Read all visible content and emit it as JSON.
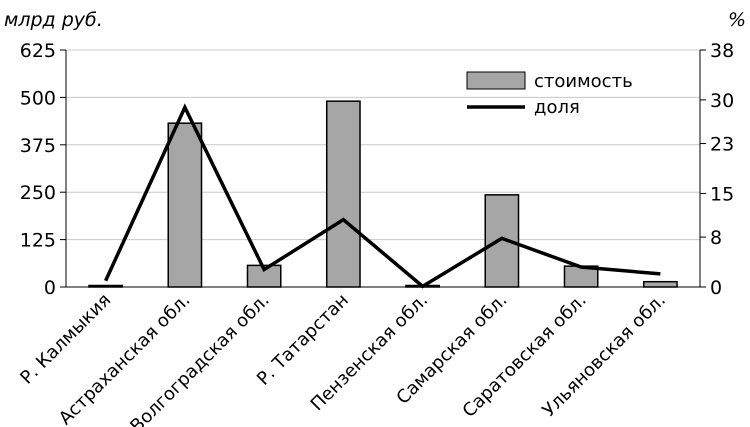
{
  "chart_data": {
    "type": "bar",
    "categories": [
      "Р. Калмыкия",
      "Астраханская обл.",
      "Волгоградская обл.",
      "Р. Татарстан",
      "Пензенская обл.",
      "Самарская обл.",
      "Саратовская обл.",
      "Ульяновская обл."
    ],
    "series": [
      {
        "name": "стоимость",
        "type": "bar",
        "axis": "left",
        "color": "#a6a6a6",
        "values": [
          0,
          432,
          57,
          490,
          0,
          243,
          55,
          14
        ]
      },
      {
        "name": "доля",
        "type": "line",
        "axis": "right",
        "color": "#000000",
        "values": [
          1,
          28.8,
          2.8,
          10.8,
          0.1,
          7.8,
          3.2,
          2.1
        ]
      }
    ],
    "y_left": {
      "label": "млрд руб.",
      "ylim": [
        0,
        625
      ],
      "ticks": [
        "0",
        "125",
        "250",
        "375",
        "500",
        "625"
      ]
    },
    "y_right": {
      "label": "%",
      "ylim": [
        0,
        38
      ],
      "ticks": [
        {
          "value": 0,
          "label": "0"
        },
        {
          "value": 8,
          "label": "8"
        },
        {
          "value": 15,
          "label": "15"
        },
        {
          "value": 23,
          "label": "23"
        },
        {
          "value": 30,
          "label": "30"
        },
        {
          "value": 38,
          "label": "38"
        }
      ]
    },
    "legend_position": "top-right",
    "grid": true
  }
}
